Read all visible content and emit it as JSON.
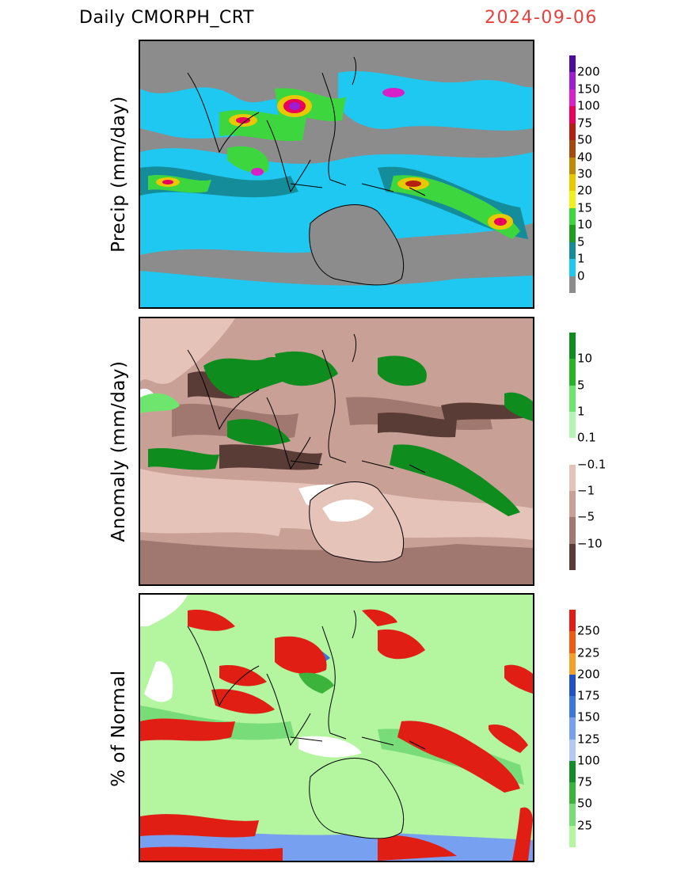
{
  "header": {
    "title": "Daily  CMORPH_CRT",
    "date": "2024-09-06"
  },
  "panels": [
    {
      "label": "Precip  (mm/day)",
      "colorbar": {
        "ticks": [
          "200",
          "150",
          "100",
          "75",
          "50",
          "40",
          "30",
          "20",
          "15",
          "10",
          "5",
          "1",
          "0"
        ],
        "colors": [
          "#4a0d9a",
          "#9b1fd0",
          "#d620c8",
          "#e8005a",
          "#b41f10",
          "#a34a10",
          "#c08a08",
          "#e8c800",
          "#f0f020",
          "#3ed63e",
          "#1e9e1e",
          "#148c9a",
          "#1ec8f0",
          "#8c8c8c"
        ]
      }
    },
    {
      "label": "Anomaly  (mm/day)",
      "colorbar": {
        "ticks": [
          "10",
          "5",
          "1",
          "0.1",
          "−0.1",
          "−1",
          "−5",
          "−10"
        ],
        "colors": [
          "#0e8c1e",
          "#28b428",
          "#6ee66e",
          "#b4f5b4",
          "#ffffff",
          "#e6c3b9",
          "#c8a096",
          "#a07870",
          "#5a3c36"
        ]
      }
    },
    {
      "label": "% of Normal",
      "colorbar": {
        "ticks": [
          "250",
          "225",
          "200",
          "175",
          "150",
          "125",
          "100",
          "75",
          "50",
          "25"
        ],
        "colors": [
          "#e01e14",
          "#f05a14",
          "#f5a028",
          "#1e50c8",
          "#3c78dc",
          "#78a0f0",
          "#b4c8f5",
          "#148c28",
          "#3cb43c",
          "#78dc78",
          "#b4f5a0"
        ]
      }
    }
  ]
}
